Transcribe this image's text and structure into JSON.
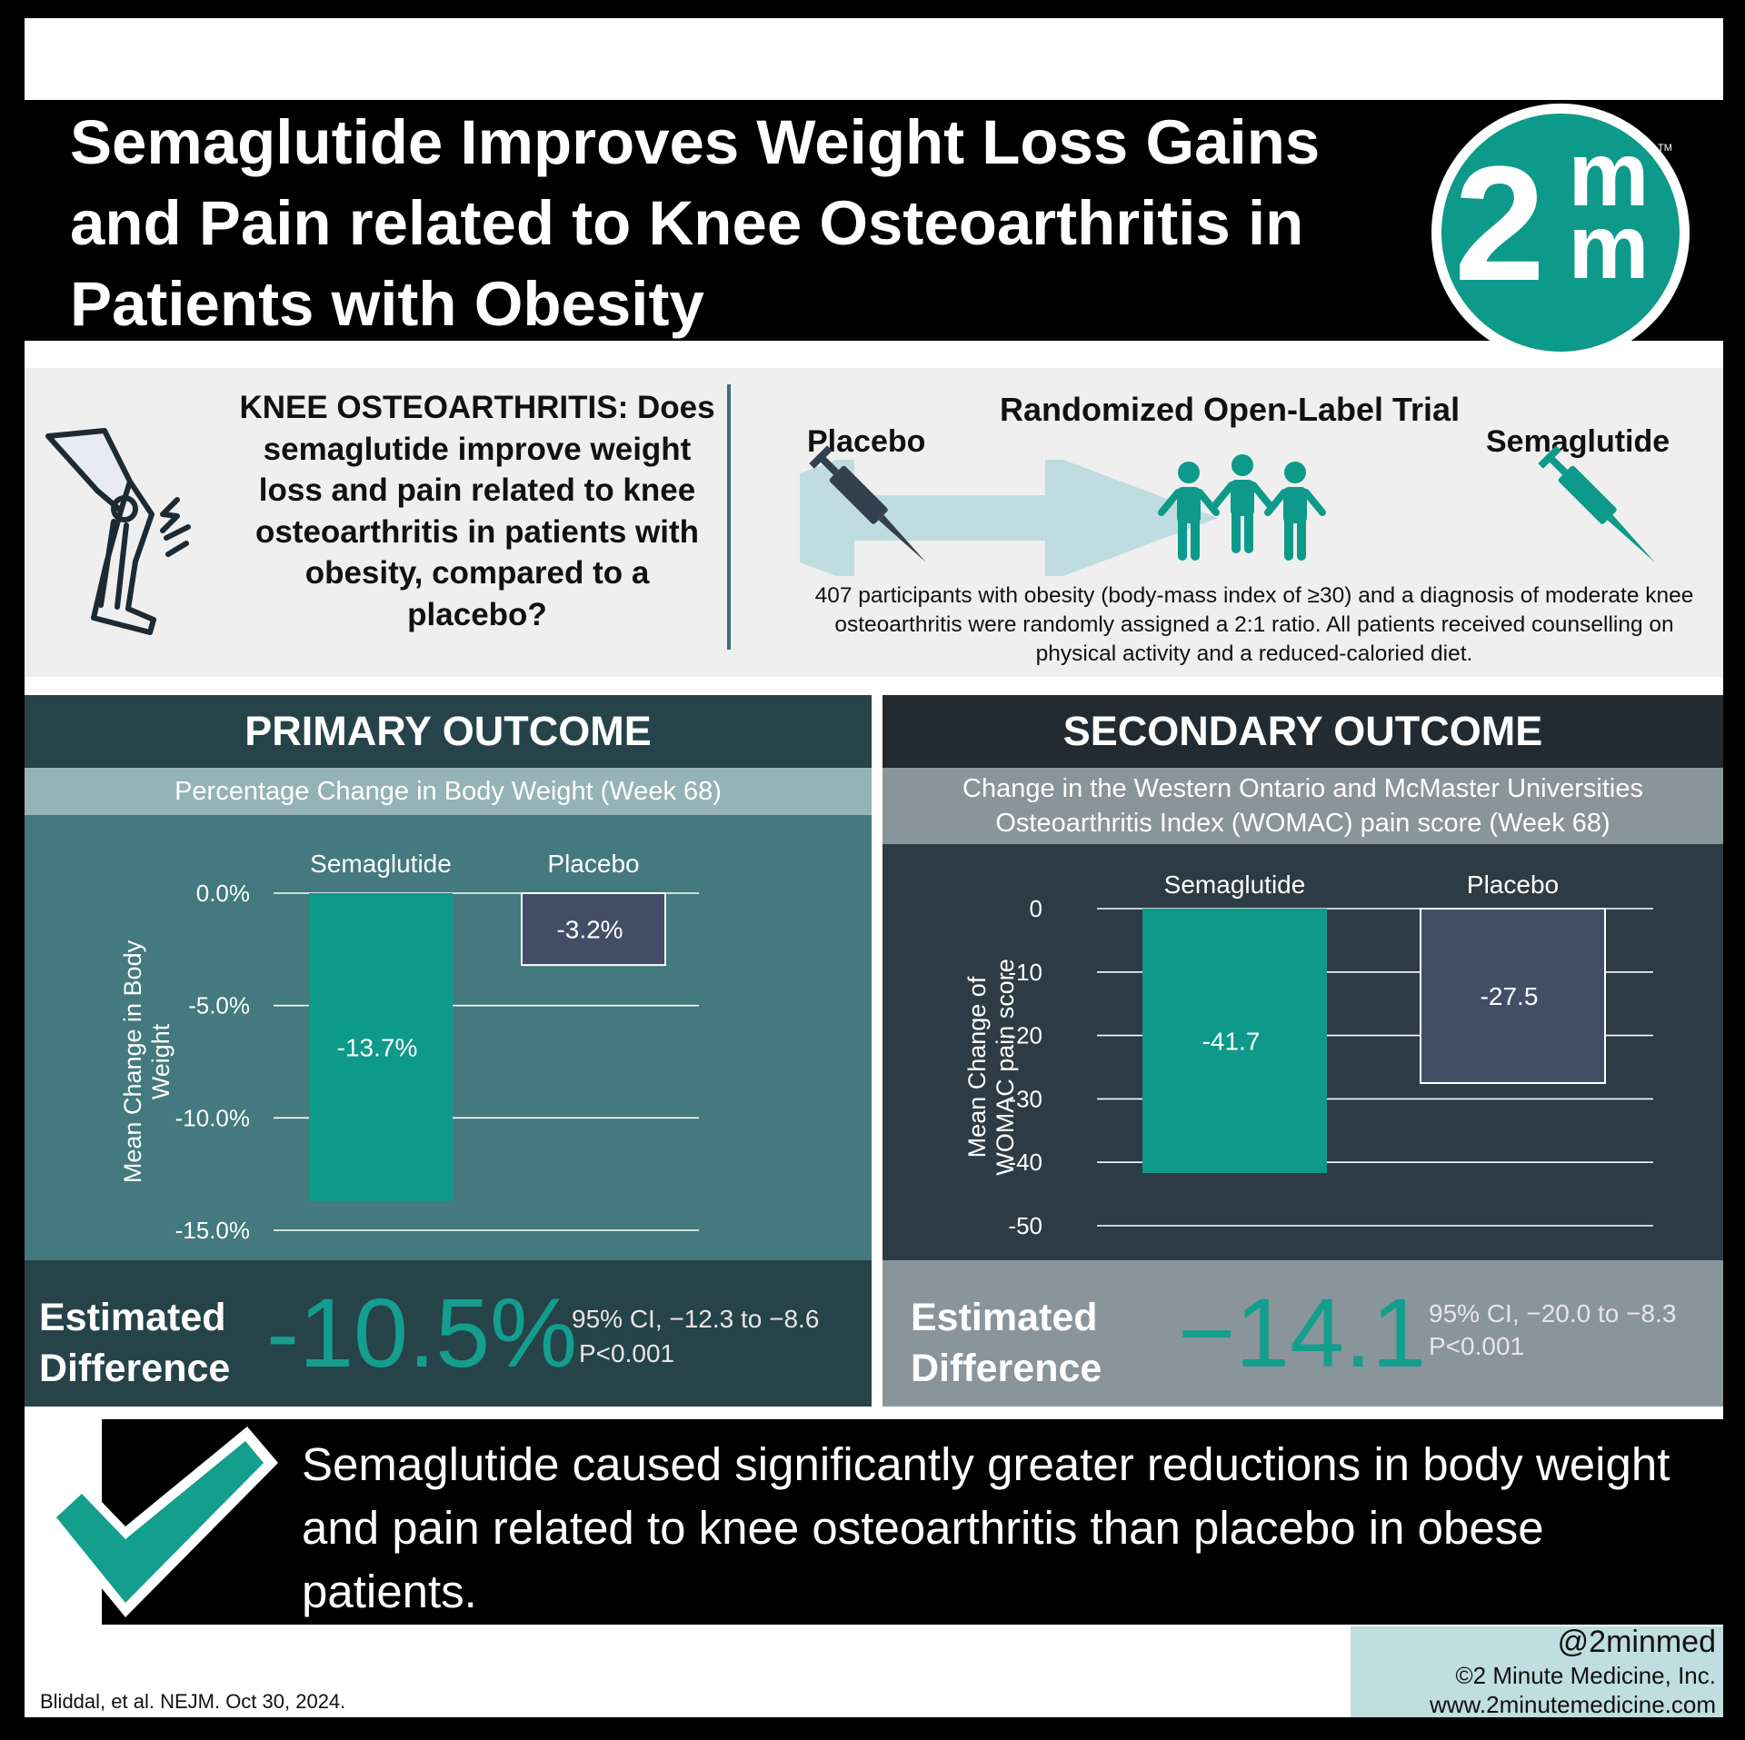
{
  "header": {
    "title": "Semaglutide Improves Weight Loss Gains and Pain related to Knee Osteoarthritis in Patients with Obesity",
    "logo_text": "2",
    "logo_sup": "m",
    "logo_sub": "m",
    "logo_tm": "TM"
  },
  "design": {
    "question": "KNEE OSTEOARTHRITIS: Does semaglutide improve weight loss and pain related to knee osteoarthritis in patients with obesity, compared to a placebo?",
    "trial_title": "Randomized Open-Label Trial",
    "arm_left": "Placebo",
    "arm_right": "Semaglutide",
    "description": "407 participants with obesity (body-mass index of ≥30) and a diagnosis of moderate knee osteoarthritis were randomly assigned a 2:1 ratio. All patients received counselling on physical activity and a reduced-caloried diet."
  },
  "primary": {
    "heading": "PRIMARY OUTCOME",
    "subheading": "Percentage Change in Body Weight (Week 68)",
    "estimate_label_1": "Estimated",
    "estimate_label_2": "Difference",
    "estimate_value": "-10.5%",
    "ci": "95% CI, −12.3 to −8.6",
    "p": "P<0.001"
  },
  "secondary": {
    "heading": "SECONDARY OUTCOME",
    "subheading_1": "Change in the Western Ontario and McMaster Universities",
    "subheading_2": "Osteoarthritis Index (WOMAC) pain score (Week 68)",
    "estimate_label_1": "Estimated",
    "estimate_label_2": "Difference",
    "estimate_value": "−14.1",
    "ci": "95% CI, −20.0 to −8.3",
    "p": "P<0.001"
  },
  "chart_data": [
    {
      "type": "bar",
      "categories": [
        "Semaglutide",
        "Placebo"
      ],
      "values": [
        -13.7,
        -3.2
      ],
      "value_labels": [
        "-13.7%",
        "-3.2%"
      ],
      "ylabel": "Mean Change in Body Weight",
      "ylim": [
        -15,
        0
      ],
      "yticks": [
        0,
        -5,
        -10,
        -15
      ],
      "ytick_labels": [
        "0.0%",
        "-5.0%",
        "-10.0%",
        "-15.0%"
      ],
      "grid": true,
      "colors": [
        "#0e9a8a",
        "#434e66"
      ]
    },
    {
      "type": "bar",
      "categories": [
        "Semaglutide",
        "Placebo"
      ],
      "values": [
        -41.7,
        -27.5
      ],
      "value_labels": [
        "-41.7",
        "-27.5"
      ],
      "ylabel": "Mean Change of WOMAC pain score",
      "ylim": [
        -50,
        0
      ],
      "yticks": [
        0,
        -10,
        -20,
        -30,
        -40,
        -50
      ],
      "ytick_labels": [
        "0",
        "-10",
        "-20",
        "-30",
        "-40",
        "-50"
      ],
      "grid": true,
      "colors": [
        "#0e9a8a",
        "#434e66"
      ]
    }
  ],
  "conclusion": "Semaglutide caused significantly greater reductions in body weight and pain related to knee osteoarthritis than placebo in obese patients.",
  "footer": {
    "citation": "Bliddal, et al. NEJM. Oct 30, 2024.",
    "handle": "@2minmed",
    "copyright": "©2 Minute Medicine, Inc.",
    "website": "www.2minutemedicine.com"
  },
  "colors": {
    "teal": "#139e8d",
    "dark_teal": "#27434a",
    "panel_teal": "#43797f",
    "slate": "#2e3b44",
    "placebo_bar": "#434e66"
  }
}
